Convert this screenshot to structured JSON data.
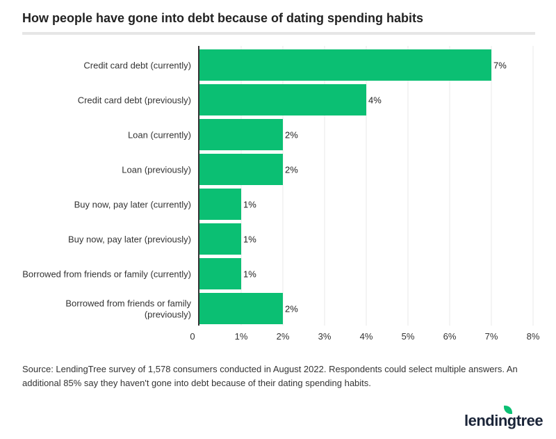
{
  "title": "How people have gone into debt because of dating spending habits",
  "source": "Source: LendingTree survey of 1,578 consumers conducted in August 2022. Respondents could select multiple answers. An additional 85% say they haven't gone into debt because of their dating spending habits.",
  "logo": "lendingtree",
  "chart_data": {
    "type": "bar",
    "orientation": "horizontal",
    "title": "How people have gone into debt because of dating spending habits",
    "categories": [
      [
        "Credit card debt (currently)"
      ],
      [
        "Credit card debt (previously)"
      ],
      [
        "Loan (currently)"
      ],
      [
        "Loan (previously)"
      ],
      [
        "Buy now, pay later (currently)"
      ],
      [
        "Buy now, pay later (previously)"
      ],
      [
        "Borrowed from friends or family (currently)"
      ],
      [
        "Borrowed from friends or family",
        "(previously)"
      ]
    ],
    "values": [
      7,
      4,
      2,
      2,
      1,
      1,
      1,
      2
    ],
    "data_labels": [
      "7%",
      "4%",
      "2%",
      "2%",
      "1%",
      "1%",
      "1%",
      "2%"
    ],
    "xlim": [
      0,
      8
    ],
    "x_ticks": [
      "0",
      "1%",
      "2%",
      "3%",
      "4%",
      "5%",
      "6%",
      "7%",
      "8%"
    ],
    "grid": true,
    "bar_color": "#0bbf73"
  }
}
